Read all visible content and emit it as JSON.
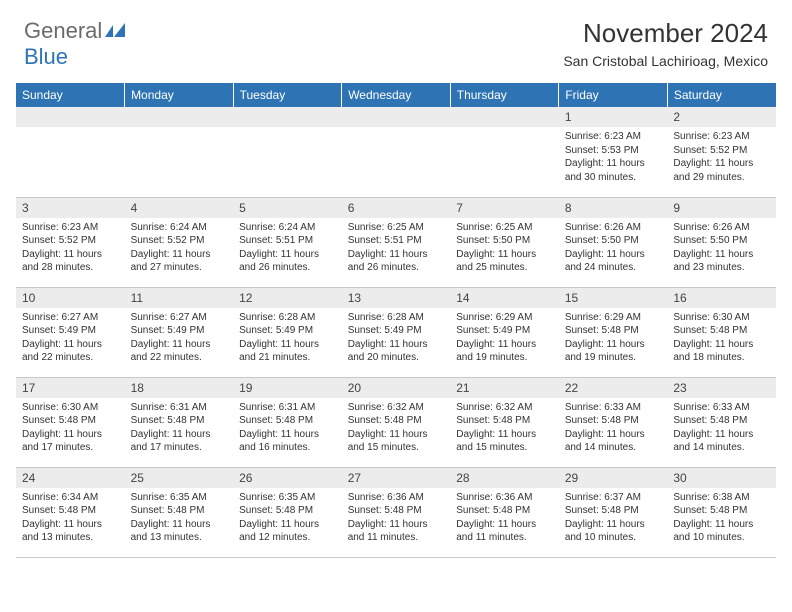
{
  "brand": {
    "part1": "General",
    "part2": "Blue"
  },
  "title": "November 2024",
  "location": "San Cristobal Lachirioag, Mexico",
  "colors": {
    "header_bg": "#2e74b5",
    "header_text": "#ffffff",
    "daynum_bg": "#ececec",
    "border": "#c8c8c8",
    "text": "#333333"
  },
  "dayHeaders": [
    "Sunday",
    "Monday",
    "Tuesday",
    "Wednesday",
    "Thursday",
    "Friday",
    "Saturday"
  ],
  "weeks": [
    [
      null,
      null,
      null,
      null,
      null,
      {
        "n": "1",
        "sr": "6:23 AM",
        "ss": "5:53 PM",
        "dl": "11 hours and 30 minutes."
      },
      {
        "n": "2",
        "sr": "6:23 AM",
        "ss": "5:52 PM",
        "dl": "11 hours and 29 minutes."
      }
    ],
    [
      {
        "n": "3",
        "sr": "6:23 AM",
        "ss": "5:52 PM",
        "dl": "11 hours and 28 minutes."
      },
      {
        "n": "4",
        "sr": "6:24 AM",
        "ss": "5:52 PM",
        "dl": "11 hours and 27 minutes."
      },
      {
        "n": "5",
        "sr": "6:24 AM",
        "ss": "5:51 PM",
        "dl": "11 hours and 26 minutes."
      },
      {
        "n": "6",
        "sr": "6:25 AM",
        "ss": "5:51 PM",
        "dl": "11 hours and 26 minutes."
      },
      {
        "n": "7",
        "sr": "6:25 AM",
        "ss": "5:50 PM",
        "dl": "11 hours and 25 minutes."
      },
      {
        "n": "8",
        "sr": "6:26 AM",
        "ss": "5:50 PM",
        "dl": "11 hours and 24 minutes."
      },
      {
        "n": "9",
        "sr": "6:26 AM",
        "ss": "5:50 PM",
        "dl": "11 hours and 23 minutes."
      }
    ],
    [
      {
        "n": "10",
        "sr": "6:27 AM",
        "ss": "5:49 PM",
        "dl": "11 hours and 22 minutes."
      },
      {
        "n": "11",
        "sr": "6:27 AM",
        "ss": "5:49 PM",
        "dl": "11 hours and 22 minutes."
      },
      {
        "n": "12",
        "sr": "6:28 AM",
        "ss": "5:49 PM",
        "dl": "11 hours and 21 minutes."
      },
      {
        "n": "13",
        "sr": "6:28 AM",
        "ss": "5:49 PM",
        "dl": "11 hours and 20 minutes."
      },
      {
        "n": "14",
        "sr": "6:29 AM",
        "ss": "5:49 PM",
        "dl": "11 hours and 19 minutes."
      },
      {
        "n": "15",
        "sr": "6:29 AM",
        "ss": "5:48 PM",
        "dl": "11 hours and 19 minutes."
      },
      {
        "n": "16",
        "sr": "6:30 AM",
        "ss": "5:48 PM",
        "dl": "11 hours and 18 minutes."
      }
    ],
    [
      {
        "n": "17",
        "sr": "6:30 AM",
        "ss": "5:48 PM",
        "dl": "11 hours and 17 minutes."
      },
      {
        "n": "18",
        "sr": "6:31 AM",
        "ss": "5:48 PM",
        "dl": "11 hours and 17 minutes."
      },
      {
        "n": "19",
        "sr": "6:31 AM",
        "ss": "5:48 PM",
        "dl": "11 hours and 16 minutes."
      },
      {
        "n": "20",
        "sr": "6:32 AM",
        "ss": "5:48 PM",
        "dl": "11 hours and 15 minutes."
      },
      {
        "n": "21",
        "sr": "6:32 AM",
        "ss": "5:48 PM",
        "dl": "11 hours and 15 minutes."
      },
      {
        "n": "22",
        "sr": "6:33 AM",
        "ss": "5:48 PM",
        "dl": "11 hours and 14 minutes."
      },
      {
        "n": "23",
        "sr": "6:33 AM",
        "ss": "5:48 PM",
        "dl": "11 hours and 14 minutes."
      }
    ],
    [
      {
        "n": "24",
        "sr": "6:34 AM",
        "ss": "5:48 PM",
        "dl": "11 hours and 13 minutes."
      },
      {
        "n": "25",
        "sr": "6:35 AM",
        "ss": "5:48 PM",
        "dl": "11 hours and 13 minutes."
      },
      {
        "n": "26",
        "sr": "6:35 AM",
        "ss": "5:48 PM",
        "dl": "11 hours and 12 minutes."
      },
      {
        "n": "27",
        "sr": "6:36 AM",
        "ss": "5:48 PM",
        "dl": "11 hours and 11 minutes."
      },
      {
        "n": "28",
        "sr": "6:36 AM",
        "ss": "5:48 PM",
        "dl": "11 hours and 11 minutes."
      },
      {
        "n": "29",
        "sr": "6:37 AM",
        "ss": "5:48 PM",
        "dl": "11 hours and 10 minutes."
      },
      {
        "n": "30",
        "sr": "6:38 AM",
        "ss": "5:48 PM",
        "dl": "11 hours and 10 minutes."
      }
    ]
  ],
  "labels": {
    "sunrise": "Sunrise:",
    "sunset": "Sunset:",
    "daylight": "Daylight:"
  }
}
